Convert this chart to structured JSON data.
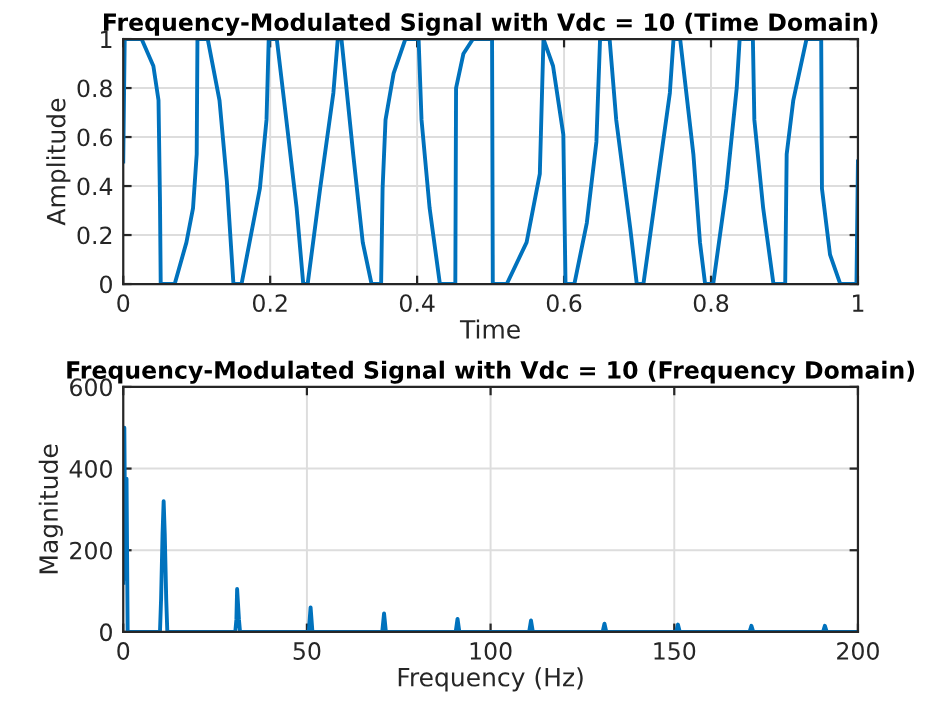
{
  "chart_data": [
    {
      "type": "line",
      "title": "Frequency-Modulated Signal with Vdc = 10 (Time Domain)",
      "xlabel": "Time",
      "ylabel": "Amplitude",
      "xlim": [
        0,
        1
      ],
      "ylim": [
        0,
        1
      ],
      "xticks": [
        0,
        0.2,
        0.4,
        0.6,
        0.8,
        1
      ],
      "yticks": [
        0,
        0.2,
        0.4,
        0.6,
        0.8,
        1
      ],
      "grid": true,
      "legend": false,
      "marker": "none",
      "line_style": "solid",
      "series": [
        {
          "color": "#0072bd",
          "x": [
            0,
            0.002,
            0.025,
            0.041,
            0.048,
            0.05,
            0.051,
            0.07,
            0.086,
            0.095,
            0.1,
            0.101,
            0.115,
            0.131,
            0.141,
            0.15,
            0.161,
            0.186,
            0.195,
            0.198,
            0.209,
            0.222,
            0.236,
            0.245,
            0.251,
            0.268,
            0.286,
            0.292,
            0.297,
            0.313,
            0.326,
            0.338,
            0.351,
            0.353,
            0.357,
            0.368,
            0.384,
            0.402,
            0.406,
            0.417,
            0.431,
            0.452,
            0.453,
            0.463,
            0.476,
            0.502,
            0.503,
            0.522,
            0.549,
            0.567,
            0.572,
            0.585,
            0.599,
            0.602,
            0.614,
            0.631,
            0.644,
            0.649,
            0.662,
            0.671,
            0.69,
            0.699,
            0.708,
            0.726,
            0.744,
            0.749,
            0.758,
            0.776,
            0.785,
            0.792,
            0.803,
            0.821,
            0.835,
            0.839,
            0.857,
            0.859,
            0.871,
            0.885,
            0.901,
            0.903,
            0.912,
            0.93,
            0.95,
            0.951,
            0.962,
            0.976,
            0.998,
            1
          ],
          "values": [
            0.5,
            1,
            1,
            0.89,
            0.75,
            0.34,
            0,
            0,
            0.17,
            0.31,
            0.53,
            1,
            1,
            0.75,
            0.42,
            0,
            0,
            0.39,
            0.67,
            1,
            1,
            0.67,
            0.31,
            0,
            0,
            0.39,
            0.78,
            1,
            1,
            0.53,
            0.17,
            0,
            0,
            0.39,
            0.67,
            0.86,
            1,
            1,
            0.67,
            0.31,
            0,
            0,
            0.8,
            0.94,
            1,
            1,
            0,
            0,
            0.17,
            0.45,
            1,
            0.89,
            0.61,
            0,
            0,
            0.25,
            0.58,
            1,
            1,
            0.67,
            0.23,
            0,
            0,
            0.39,
            0.78,
            1,
            1,
            0.53,
            0.17,
            0,
            0,
            0.39,
            0.8,
            1,
            1,
            0.67,
            0.31,
            0,
            0,
            0.53,
            0.75,
            1,
            1,
            0.39,
            0.12,
            0,
            0,
            0.5
          ]
        }
      ]
    },
    {
      "type": "line",
      "title": "Frequency-Modulated Signal with Vdc = 10 (Frequency Domain)",
      "xlabel": "Frequency (Hz)",
      "ylabel": "Magnitude",
      "xlim": [
        0,
        200
      ],
      "ylim": [
        0,
        600
      ],
      "xticks": [
        0,
        50,
        100,
        150,
        200
      ],
      "yticks": [
        0,
        200,
        400,
        600
      ],
      "grid": true,
      "legend": false,
      "marker": "none",
      "line_style": "solid",
      "series": [
        {
          "color": "#0072bd",
          "x": [
            0,
            0.3,
            0.6,
            0.9,
            1.2,
            10,
            10.3,
            10.7,
            11,
            11.3,
            11.7,
            12,
            30.5,
            30.8,
            31,
            31.2,
            31.5,
            31.8,
            50.5,
            51,
            51.5,
            70.5,
            71,
            71.5,
            90.5,
            91,
            91.5,
            110.5,
            111,
            111.5,
            130.5,
            131,
            131.5,
            150.5,
            151,
            151.5,
            170.5,
            171,
            171.5,
            190.5,
            191,
            191.5,
            200
          ],
          "values": [
            120,
            500,
            130,
            375,
            0,
            0,
            80,
            240,
            320,
            240,
            80,
            0,
            0,
            30,
            105,
            75,
            30,
            0,
            0,
            60,
            0,
            0,
            45,
            0,
            0,
            32,
            0,
            0,
            28,
            0,
            0,
            20,
            0,
            0,
            18,
            0,
            0,
            15,
            0,
            0,
            15,
            0,
            0
          ]
        }
      ]
    }
  ]
}
